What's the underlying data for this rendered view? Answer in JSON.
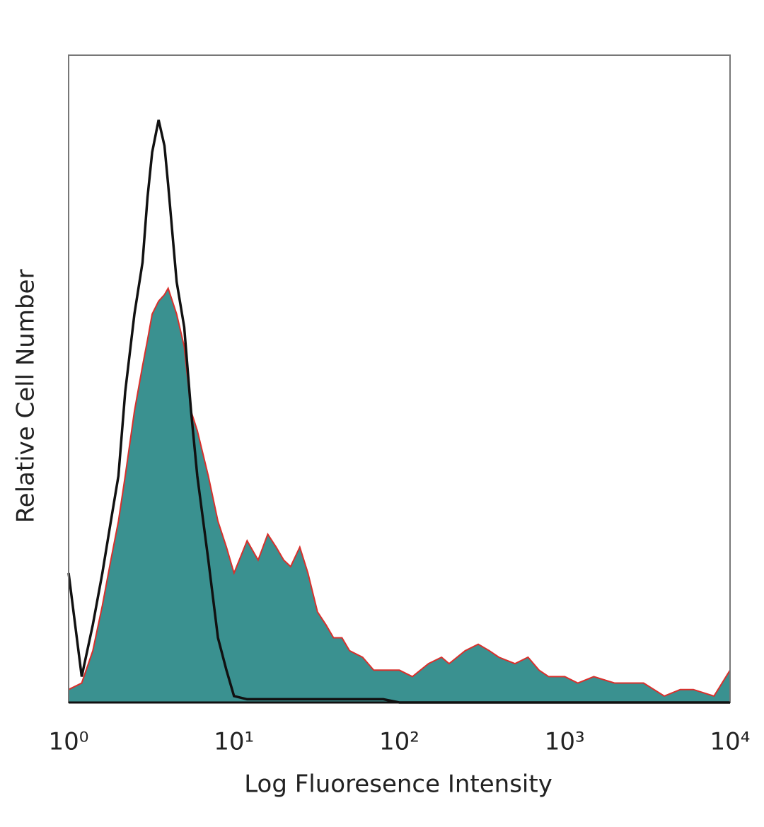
{
  "chart_data": {
    "type": "histogram_overlay",
    "x_label": "Log Fluoresence Intensity",
    "y_label": "Relative Cell Number",
    "xscale": "log",
    "xlim": [
      1,
      10000
    ],
    "ylim": [
      0,
      100
    ],
    "xticks": [
      {
        "value": 1,
        "label": "10⁰"
      },
      {
        "value": 10,
        "label": "10¹"
      },
      {
        "value": 100,
        "label": "10²"
      },
      {
        "value": 1000,
        "label": "10³"
      },
      {
        "value": 10000,
        "label": "10⁴"
      }
    ],
    "grid": false,
    "x": [
      1,
      1.2,
      1.4,
      1.6,
      1.8,
      2,
      2.2,
      2.5,
      2.8,
      3,
      3.2,
      3.5,
      3.8,
      4,
      4.5,
      5,
      5.5,
      6,
      7,
      8,
      9,
      10,
      12,
      14,
      16,
      18,
      20,
      22,
      25,
      28,
      32,
      36,
      40,
      45,
      50,
      60,
      70,
      80,
      100,
      120,
      150,
      180,
      200,
      250,
      300,
      350,
      400,
      500,
      600,
      700,
      800,
      1000,
      1200,
      1500,
      2000,
      2500,
      3000,
      4000,
      5000,
      6000,
      8000,
      10000
    ],
    "series": [
      {
        "color": "#3a9190",
        "edge_color": "#d9302c",
        "filled": true,
        "values": [
          2,
          3,
          8,
          15,
          22,
          28,
          35,
          45,
          52,
          56,
          60,
          62,
          63,
          64,
          60,
          55,
          45,
          42,
          35,
          28,
          24,
          20,
          25,
          22,
          26,
          24,
          22,
          21,
          24,
          20,
          14,
          12,
          10,
          10,
          8,
          7,
          5,
          5,
          5,
          4,
          6,
          7,
          6,
          8,
          9,
          8,
          7,
          6,
          7,
          5,
          4,
          4,
          3,
          4,
          3,
          3,
          3,
          1,
          2,
          2,
          1,
          5
        ]
      },
      {
        "color": "#111111",
        "filled": false,
        "values": [
          20,
          4,
          12,
          20,
          28,
          35,
          48,
          60,
          68,
          78,
          85,
          90,
          86,
          80,
          65,
          58,
          45,
          35,
          22,
          10,
          5,
          1,
          0.5,
          0.5,
          0.5,
          0.5,
          0.5,
          0.5,
          0.5,
          0.5,
          0.5,
          0.5,
          0.5,
          0.5,
          0.5,
          0.5,
          0.5,
          0.5,
          0,
          0,
          0,
          0,
          0,
          0,
          0,
          0,
          0,
          0,
          0,
          0,
          0,
          0,
          0,
          0,
          0,
          0,
          0,
          0,
          0,
          0,
          0,
          0
        ]
      }
    ]
  }
}
